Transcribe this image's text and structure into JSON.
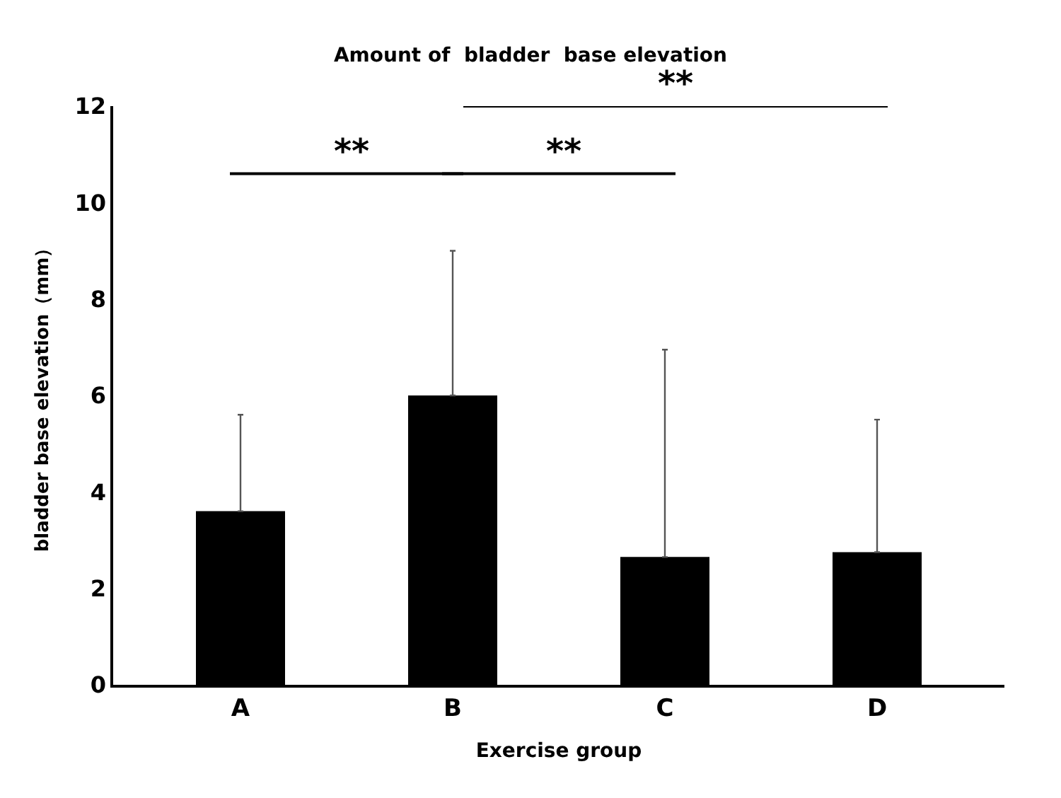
{
  "chart_data": {
    "type": "bar",
    "title": "Amount of  bladder  base elevation",
    "xlabel": "Exercise group",
    "ylabel": "bladder base elevation（mm）",
    "categories": [
      "A",
      "B",
      "C",
      "D"
    ],
    "series": [
      {
        "color": "#000000",
        "values": [
          3.6,
          6.0,
          2.65,
          2.75
        ],
        "errors": [
          [
            3.6,
            5.6
          ],
          [
            6.0,
            9.0
          ],
          [
            2.65,
            6.95
          ],
          [
            2.75,
            5.5
          ]
        ]
      }
    ],
    "ylim": [
      0,
      12
    ],
    "yticks": [
      0,
      2,
      4,
      6,
      8,
      10,
      12
    ],
    "annotations": [
      "**",
      "**",
      "**"
    ]
  }
}
